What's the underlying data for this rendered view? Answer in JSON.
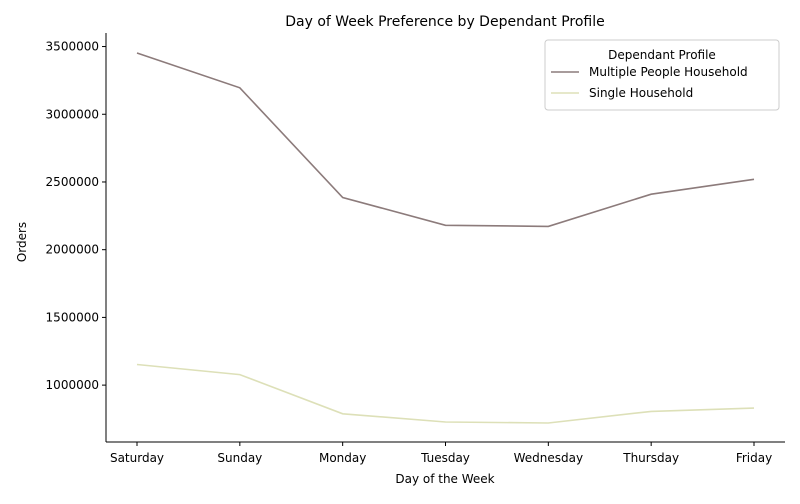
{
  "chart_data": {
    "type": "line",
    "title": "Day of Week Preference by Dependant Profile",
    "xlabel": "Day of the Week",
    "ylabel": "Orders",
    "categories": [
      "Saturday",
      "Sunday",
      "Monday",
      "Tuesday",
      "Wednesday",
      "Thursday",
      "Friday"
    ],
    "series": [
      {
        "name": "Multiple People Household",
        "color": "#8c7b7b",
        "values": [
          3452000,
          3195000,
          2385000,
          2180000,
          2172000,
          2410000,
          2520000
        ]
      },
      {
        "name": "Single Household",
        "color": "#dde0b8",
        "values": [
          1152000,
          1078000,
          788000,
          728000,
          720000,
          806000,
          830000
        ]
      }
    ],
    "yticks": [
      1000000,
      1500000,
      2000000,
      2500000,
      3000000,
      3500000
    ],
    "ylim": [
      580000,
      3600000
    ],
    "legend": {
      "title": "Dependant Profile",
      "position": "top-right"
    },
    "grid": false
  }
}
